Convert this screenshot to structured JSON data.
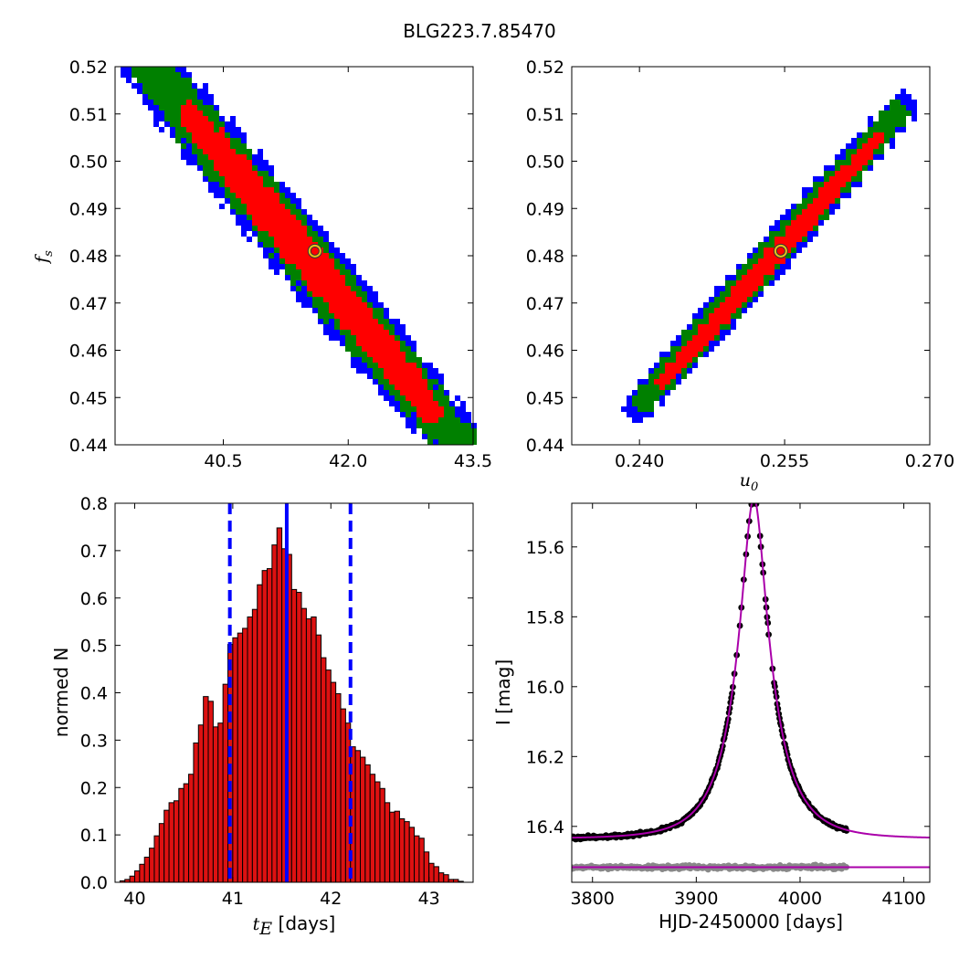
{
  "figure_title": "BLG223.7.85470",
  "chart_data": [
    {
      "type": "heatmap",
      "panel": "top-left",
      "xlabel": "",
      "ylabel": "f_s",
      "ylabel_main": "f",
      "ylabel_sub": "s",
      "xlim": [
        39.2,
        43.5
      ],
      "ylim": [
        0.44,
        0.52
      ],
      "xticks": [
        40.5,
        42.0,
        43.5
      ],
      "xtick_labels": [
        "40.5",
        "42.0",
        "43.5"
      ],
      "yticks": [
        0.44,
        0.45,
        0.46,
        0.47,
        0.48,
        0.49,
        0.5,
        0.51,
        0.52
      ],
      "ytick_labels": [
        "0.44",
        "0.45",
        "0.46",
        "0.47",
        "0.48",
        "0.49",
        "0.50",
        "0.51",
        "0.52"
      ],
      "regions": [
        {
          "name": "3-sigma",
          "color": "#0000ff",
          "center": [
            41.45,
            0.4805
          ],
          "half_length": 2.34,
          "half_width": 0.0068
        },
        {
          "name": "2-sigma",
          "color": "#008000",
          "center": [
            41.45,
            0.4805
          ],
          "half_length": 2.2,
          "half_width": 0.0052
        },
        {
          "name": "1-sigma",
          "color": "#ff0000",
          "center": [
            41.55,
            0.4785
          ],
          "half_length": 1.55,
          "half_width": 0.0036
        }
      ],
      "corner_points": [
        [
          40.3,
          0.514
        ],
        [
          43.45,
          0.4465
        ]
      ],
      "best_fit": [
        41.6,
        0.481
      ]
    },
    {
      "type": "heatmap",
      "panel": "top-right",
      "xlabel": "u_0",
      "xlabel_main": "u",
      "xlabel_sub": "0",
      "ylabel": "",
      "xlim": [
        0.233,
        0.27
      ],
      "ylim": [
        0.44,
        0.52
      ],
      "xticks": [
        0.24,
        0.255,
        0.27
      ],
      "xtick_labels": [
        "0.240",
        "0.255",
        "0.270"
      ],
      "yticks": [
        0.44,
        0.45,
        0.46,
        0.47,
        0.48,
        0.49,
        0.5,
        0.51,
        0.52
      ],
      "ytick_labels": [
        "0.44",
        "0.45",
        "0.46",
        "0.47",
        "0.48",
        "0.49",
        "0.50",
        "0.51",
        "0.52"
      ],
      "regions": [
        {
          "name": "3-sigma",
          "color": "#0000ff",
          "center": [
            0.2535,
            0.4795
          ],
          "half_length": 0.0147,
          "half_width": 0.0042
        },
        {
          "name": "2-sigma",
          "color": "#008000",
          "center": [
            0.2535,
            0.4795
          ],
          "half_length": 0.0138,
          "half_width": 0.0032
        },
        {
          "name": "1-sigma",
          "color": "#ff0000",
          "center": [
            0.2535,
            0.479
          ],
          "half_length": 0.0115,
          "half_width": 0.002
        }
      ],
      "corner_points": [
        [
          0.2393,
          0.4465
        ],
        [
          0.2683,
          0.5135
        ]
      ],
      "best_fit": [
        0.2546,
        0.481
      ]
    },
    {
      "type": "bar",
      "panel": "bottom-left",
      "xlabel": "t_E [days]",
      "xlabel_main": "t",
      "xlabel_sub": "E",
      "xlabel_unit": " [days]",
      "ylabel": "normed N",
      "xlim": [
        39.8,
        43.45
      ],
      "ylim": [
        0.0,
        0.8
      ],
      "xticks": [
        40,
        41,
        42,
        43
      ],
      "xtick_labels": [
        "40",
        "41",
        "42",
        "43"
      ],
      "yticks": [
        0.0,
        0.1,
        0.2,
        0.3,
        0.4,
        0.5,
        0.6,
        0.7,
        0.8
      ],
      "ytick_labels": [
        "0.0",
        "0.1",
        "0.2",
        "0.3",
        "0.4",
        "0.5",
        "0.6",
        "0.7",
        "0.8"
      ],
      "bin_start": 39.8,
      "bin_width": 0.05,
      "values": [
        0.0,
        0.003,
        0.006,
        0.013,
        0.024,
        0.038,
        0.053,
        0.072,
        0.098,
        0.124,
        0.152,
        0.168,
        0.172,
        0.198,
        0.208,
        0.228,
        0.294,
        0.332,
        0.392,
        0.382,
        0.328,
        0.336,
        0.418,
        0.502,
        0.516,
        0.526,
        0.536,
        0.56,
        0.576,
        0.628,
        0.658,
        0.662,
        0.712,
        0.748,
        0.704,
        0.692,
        0.618,
        0.612,
        0.578,
        0.556,
        0.56,
        0.522,
        0.474,
        0.448,
        0.422,
        0.398,
        0.366,
        0.336,
        0.286,
        0.278,
        0.264,
        0.248,
        0.228,
        0.212,
        0.198,
        0.168,
        0.148,
        0.15,
        0.134,
        0.128,
        0.116,
        0.098,
        0.093,
        0.064,
        0.04,
        0.033,
        0.02,
        0.016,
        0.006,
        0.006,
        0.002,
        0.0,
        0.0
      ],
      "bar_color": "#dd1111",
      "median": 41.55,
      "interval": [
        40.97,
        42.2
      ],
      "line_color": "#0000ff"
    },
    {
      "type": "scatter",
      "panel": "bottom-right",
      "xlabel": "HJD-2450000 [days]",
      "ylabel": "I [mag]",
      "xlim": [
        3780,
        4125
      ],
      "ylim": [
        16.56,
        15.475
      ],
      "inverted_y": true,
      "xticks": [
        3800,
        3900,
        4000,
        4100
      ],
      "xtick_labels": [
        "3800",
        "3900",
        "4000",
        "4100"
      ],
      "yticks": [
        15.6,
        15.8,
        16.0,
        16.2,
        16.4
      ],
      "ytick_labels": [
        "15.6",
        "15.8",
        "16.0",
        "16.2",
        "16.4"
      ],
      "model": {
        "t0": 3955.5,
        "u0": 0.2546,
        "tE": 41.6,
        "fs": 0.481,
        "I_base": 16.435,
        "color": "#aa00aa"
      },
      "data_range": [
        3780,
        4045
      ],
      "data_color": "#000000",
      "residual_level": 16.517,
      "residual_color": "#888888"
    }
  ]
}
